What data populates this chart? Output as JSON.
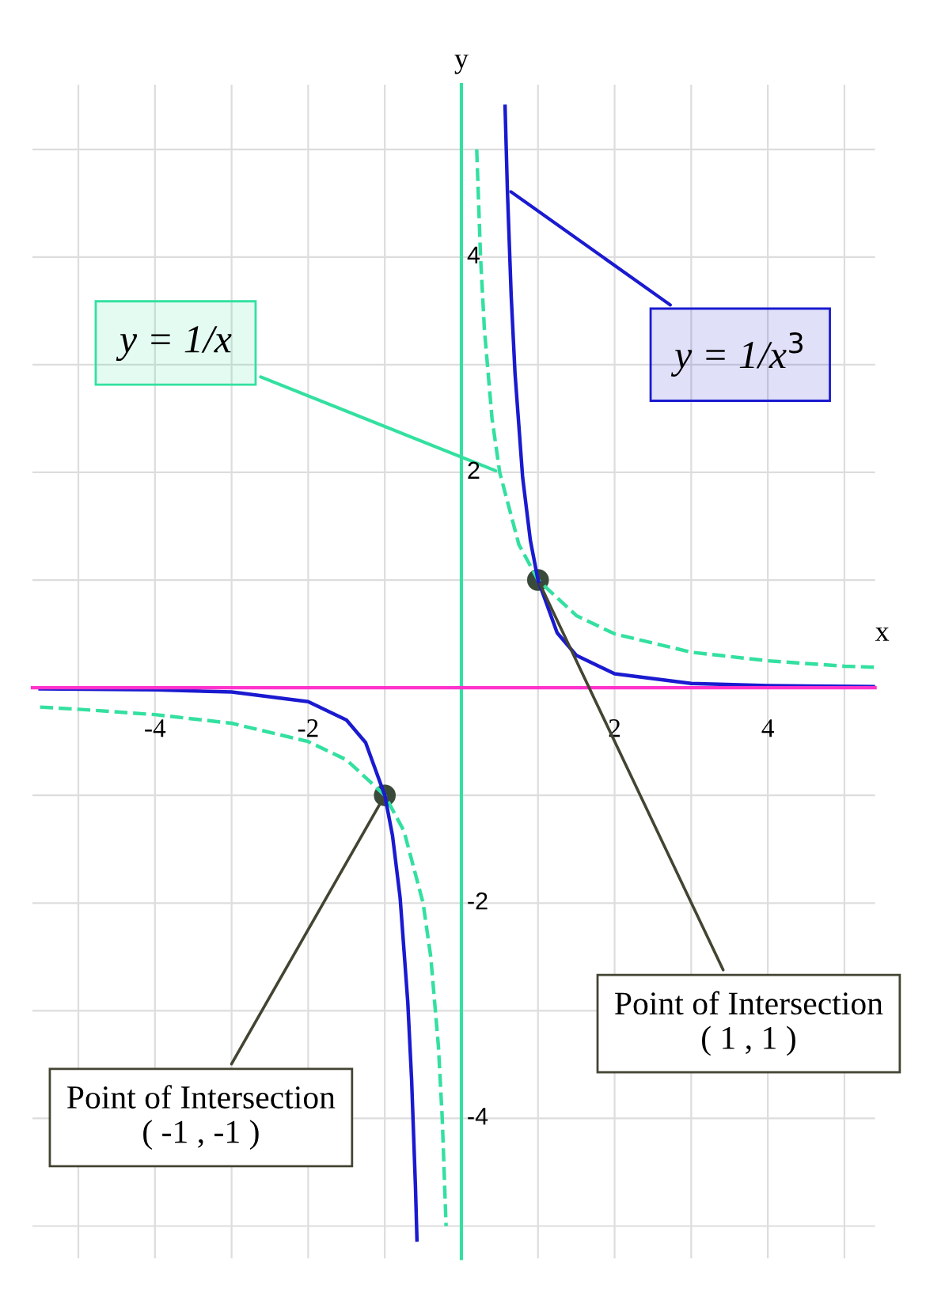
{
  "chart_data": {
    "type": "line",
    "xlabel": "x",
    "ylabel": "y",
    "xlim": [
      -5.6,
      5.4
    ],
    "ylim": [
      -5.3,
      5.6
    ],
    "xticks": [
      {
        "value": -5,
        "label": null
      },
      -4,
      {
        "value": -3,
        "label": null
      },
      -2,
      {
        "value": -1,
        "label": null
      },
      {
        "value": 0,
        "label": null
      },
      {
        "value": 1,
        "label": null
      },
      2,
      {
        "value": 3,
        "label": null
      },
      4,
      {
        "value": 5,
        "label": null
      }
    ],
    "yticks": [
      {
        "value": -5,
        "label": null
      },
      -4,
      {
        "value": -3,
        "label": null
      },
      -2,
      {
        "value": -1,
        "label": null
      },
      {
        "value": 0,
        "label": null
      },
      {
        "value": 1,
        "label": null
      },
      2,
      {
        "value": 3,
        "label": null
      },
      4,
      {
        "value": 5,
        "label": null
      }
    ],
    "grid": true,
    "series": [
      {
        "name": "y = 1/x",
        "color": "#33e0a0",
        "line_style": "dashed",
        "x": [
          -5.5,
          -5,
          -4,
          -3,
          -2,
          -1.5,
          -1,
          -0.75,
          -0.5,
          -0.4,
          -0.3,
          -0.25,
          -0.2,
          0,
          0.2,
          0.25,
          0.3,
          0.4,
          0.5,
          0.75,
          1,
          1.5,
          2,
          3,
          4,
          5,
          5.4
        ],
        "values": [
          -0.18,
          -0.2,
          -0.25,
          -0.33,
          -0.5,
          -0.67,
          -1,
          -1.33,
          -2,
          -2.5,
          -3.33,
          -4,
          -5,
          null,
          5,
          4,
          3.33,
          2.5,
          2,
          1.33,
          1,
          0.67,
          0.5,
          0.33,
          0.25,
          0.2,
          0.19
        ]
      },
      {
        "name": "y = 1/x$^{3}$",
        "color": "#1a1ad0",
        "line_style": "solid",
        "x": [
          -5.5,
          -4,
          -3,
          -2,
          -1.5,
          -1.25,
          -1,
          -0.9,
          -0.8,
          -0.7,
          -0.65,
          -0.6,
          -0.58,
          0,
          0.57,
          0.6,
          0.65,
          0.7,
          0.8,
          0.9,
          1,
          1.25,
          1.5,
          2,
          3,
          4,
          5.4
        ],
        "values": [
          -0.01,
          -0.02,
          -0.04,
          -0.13,
          -0.3,
          -0.51,
          -1,
          -1.37,
          -1.95,
          -2.92,
          -3.64,
          -4.63,
          -5.13,
          null,
          5.4,
          4.63,
          3.64,
          2.92,
          1.95,
          1.37,
          1,
          0.51,
          0.3,
          0.13,
          0.04,
          0.02,
          0.01
        ]
      },
      {
        "type": "scatter",
        "color": "#3a4a3a",
        "marker": "circle",
        "x": [
          -1,
          1
        ],
        "values": [
          -1,
          1
        ]
      }
    ],
    "annotations": [
      {
        "text": "Point of Intersection\n( 1 , 1 )",
        "x": 1,
        "y": 1
      },
      {
        "text": "Point of Intersection\n( -1 , -1 )",
        "x": -1,
        "y": -1
      }
    ]
  }
}
